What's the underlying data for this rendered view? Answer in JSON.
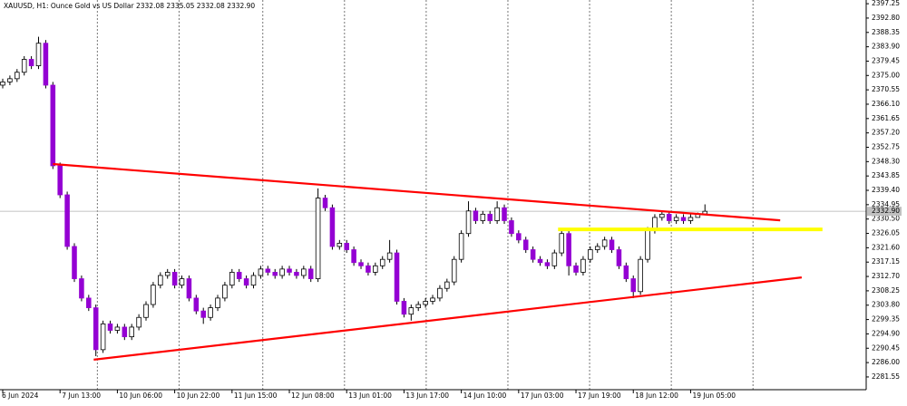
{
  "chart_data": {
    "type": "candlestick",
    "title": "XAUUSD, H1:  Ounce Gold vs US Dollar  2332.08 2335.05 2332.08 2332.90",
    "categories": [
      "6 Jun 2024",
      null,
      null,
      null,
      null,
      null,
      null,
      null,
      "7 Jun 13:00",
      null,
      null,
      null,
      null,
      null,
      null,
      null,
      "10 Jun 06:00",
      null,
      null,
      null,
      null,
      null,
      null,
      null,
      "10 Jun 22:00",
      null,
      null,
      null,
      null,
      null,
      null,
      null,
      "11 Jun 15:00",
      null,
      null,
      null,
      null,
      null,
      null,
      null,
      "12 Jun 08:00",
      null,
      null,
      null,
      null,
      null,
      null,
      null,
      "13 Jun 01:00",
      null,
      null,
      null,
      null,
      null,
      null,
      null,
      "13 Jun 17:00",
      null,
      null,
      null,
      null,
      null,
      null,
      null,
      "14 Jun 10:00",
      null,
      null,
      null,
      null,
      null,
      null,
      null,
      "17 Jun 03:00",
      null,
      null,
      null,
      null,
      null,
      null,
      null,
      "17 Jun 19:00",
      null,
      null,
      null,
      null,
      null,
      null,
      null,
      "18 Jun 12:00",
      null,
      null,
      null,
      null,
      null,
      null,
      null,
      "19 Jun 05:00",
      null,
      null
    ],
    "open": [
      2372,
      2373,
      2374,
      2376,
      2380,
      2378,
      2385,
      2372,
      2347,
      2338,
      2322,
      2312,
      2306,
      2303,
      2290,
      2298,
      2296,
      2297,
      2294,
      2297,
      2300,
      2304,
      2310,
      2313,
      2314,
      2310,
      2312,
      2306,
      2302,
      2300,
      2303,
      2306,
      2310,
      2314,
      2312,
      2310,
      2313,
      2315,
      2314,
      2313,
      2315,
      2314,
      2313,
      2315,
      2312,
      2337,
      2334,
      2322,
      2323,
      2321,
      2317,
      2316,
      2314,
      2316,
      2318,
      2320,
      2305,
      2301,
      2303,
      2304,
      2305,
      2306,
      2309,
      2311,
      2318,
      2326,
      2333,
      2330,
      2332,
      2330,
      2334,
      2330,
      2326,
      2324,
      2321,
      2318,
      2317,
      2316,
      2320,
      2326,
      2316,
      2314,
      2318,
      2321,
      2322,
      2324,
      2321,
      2316,
      2312,
      2308,
      2318,
      2327,
      2331,
      2332,
      2330,
      2331,
      2330,
      2331,
      2332.08
    ],
    "high": [
      2374,
      2375,
      2377,
      2381,
      2381,
      2387,
      2386,
      2373,
      2348,
      2339,
      2323,
      2313,
      2307,
      2304,
      2299,
      2299,
      2298,
      2298,
      2298,
      2301,
      2305,
      2311,
      2314,
      2315,
      2315,
      2313,
      2313,
      2307,
      2303,
      2304,
      2307,
      2311,
      2315,
      2315,
      2313,
      2314,
      2316,
      2316,
      2315,
      2316,
      2316,
      2315,
      2316,
      2316,
      2340,
      2338,
      2335,
      2324,
      2324,
      2322,
      2318,
      2317,
      2317,
      2319,
      2324,
      2321,
      2306,
      2304,
      2305,
      2306,
      2307,
      2310,
      2312,
      2319,
      2327,
      2336,
      2334,
      2333,
      2333,
      2336,
      2335,
      2331,
      2327,
      2325,
      2322,
      2319,
      2318,
      2321,
      2327,
      2327,
      2317,
      2319,
      2322,
      2323,
      2325,
      2325,
      2322,
      2317,
      2313,
      2319,
      2328,
      2332,
      2333,
      2333,
      2332,
      2332,
      2332,
      2332.5,
      2335.05
    ],
    "low": [
      2371,
      2372,
      2373,
      2375,
      2377,
      2377,
      2371,
      2346,
      2337,
      2321,
      2311,
      2305,
      2302,
      2288,
      2289,
      2295,
      2295,
      2293,
      2293,
      2296,
      2299,
      2303,
      2309,
      2312,
      2309,
      2309,
      2305,
      2301,
      2298,
      2299,
      2302,
      2305,
      2309,
      2311,
      2309,
      2309,
      2312,
      2313,
      2312,
      2312,
      2313,
      2312,
      2312,
      2311,
      2311,
      2333,
      2321,
      2321,
      2320,
      2316,
      2315,
      2313,
      2313,
      2315,
      2317,
      2304,
      2300,
      2299,
      2302,
      2303,
      2304,
      2305,
      2308,
      2310,
      2317,
      2325,
      2329,
      2329,
      2329,
      2329,
      2329,
      2325,
      2323,
      2320,
      2317,
      2316,
      2315,
      2315,
      2319,
      2313,
      2313,
      2313,
      2317,
      2320,
      2321,
      2320,
      2315,
      2311,
      2306,
      2307,
      2317,
      2326,
      2330,
      2329,
      2329,
      2329,
      2329,
      2331,
      2332.08
    ],
    "close": [
      2373,
      2374,
      2376,
      2380,
      2378,
      2385,
      2372,
      2347,
      2338,
      2322,
      2312,
      2306,
      2303,
      2290,
      2298,
      2296,
      2297,
      2294,
      2297,
      2300,
      2304,
      2310,
      2313,
      2314,
      2310,
      2312,
      2306,
      2302,
      2300,
      2303,
      2306,
      2310,
      2314,
      2312,
      2310,
      2313,
      2315,
      2314,
      2313,
      2315,
      2314,
      2313,
      2315,
      2312,
      2337,
      2334,
      2322,
      2323,
      2321,
      2317,
      2316,
      2314,
      2316,
      2318,
      2320,
      2305,
      2301,
      2303,
      2304,
      2305,
      2306,
      2309,
      2311,
      2318,
      2326,
      2333,
      2330,
      2332,
      2330,
      2334,
      2330,
      2326,
      2324,
      2321,
      2318,
      2317,
      2316,
      2320,
      2326,
      2316,
      2314,
      2318,
      2321,
      2322,
      2324,
      2321,
      2316,
      2312,
      2308,
      2318,
      2327,
      2331,
      2332,
      2330,
      2331,
      2330,
      2331,
      2332.08,
      2332.9
    ],
    "up_color": "#ffffff",
    "down_color": "#9400d3",
    "wick_color": "#000000",
    "xlim": [
      -0.38,
      120.5
    ],
    "xgrid": [
      13.2,
      24.6,
      36.3,
      47.7,
      59.1,
      70.5,
      81.9,
      93.3,
      104.7
    ],
    "ylim": [
      2277.6,
      2398.4
    ],
    "yticks": [
      2397.25,
      {
        "value": 2392.8,
        "label": "2392.80"
      },
      2388.35,
      {
        "value": 2383.9,
        "label": "2383.90"
      },
      2379.45,
      {
        "value": 2375,
        "label": "2375.00"
      },
      2370.55,
      {
        "value": 2366.1,
        "label": "2366.10"
      },
      2361.65,
      {
        "value": 2357.2,
        "label": "2357.20"
      },
      2352.75,
      {
        "value": 2348.3,
        "label": "2348.30"
      },
      2343.85,
      {
        "value": 2339.4,
        "label": "2339.40"
      },
      2334.95,
      {
        "value": 2330.5,
        "label": "2330.50"
      },
      2326.05,
      {
        "value": 2321.6,
        "label": "2321.60"
      },
      2317.15,
      {
        "value": 2312.7,
        "label": "2312.70"
      },
      2308.25,
      {
        "value": 2303.8,
        "label": "2303.80"
      },
      2299.35,
      {
        "value": 2294.9,
        "label": "2294.90"
      },
      2290.45,
      {
        "value": 2286,
        "label": "2286.00"
      },
      2281.55
    ],
    "current_price": {
      "value": 2332.9,
      "label": "2332.90"
    },
    "lines": [
      {
        "color": "#ff0000",
        "x": [
          7,
          108.5
        ],
        "y": [
          2347.55,
          2330.1
        ]
      },
      {
        "color": "#ff0000",
        "x": [
          12.7,
          111.5
        ],
        "y": [
          2286.9,
          2312.4
        ]
      },
      {
        "color": "#ffff00",
        "x": [
          77.5,
          114.4
        ],
        "y": [
          2327.3,
          2327.3
        ]
      }
    ]
  }
}
